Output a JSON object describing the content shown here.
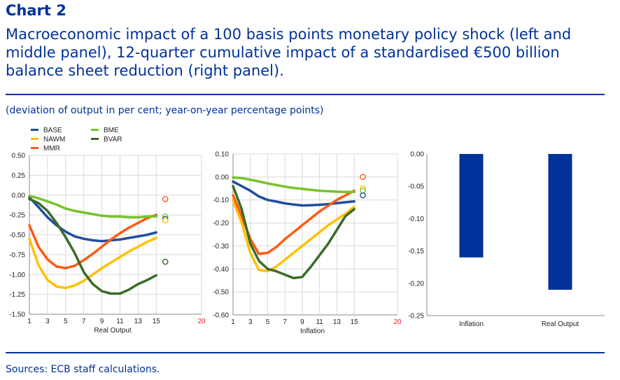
{
  "header": {
    "chart_label": "Chart 2",
    "title": "Macroeconomic impact of a 100 basis points monetary policy shock (left and middle panel), 12-quarter cumulative impact of a standardised €500 billion balance sheet reduction (right panel).",
    "unit_note": "(deviation of output in per cent; year-on-year percentage points)",
    "source": "Sources: ECB staff calculations."
  },
  "colors": {
    "BASE": "#1f4e9c",
    "NAWM": "#ffc000",
    "MMR": "#ff5a12",
    "BME": "#76c32a",
    "BVAR": "#3b6b2a",
    "bar": "#003299",
    "red_tick": "#e8192c"
  },
  "chart_data": [
    {
      "type": "line",
      "xlabel": "Real Output",
      "xlim": [
        1,
        20
      ],
      "xticks": [
        "1",
        "3",
        "5",
        "7",
        "9",
        "11",
        "13",
        "15",
        "20"
      ],
      "ylim": [
        -1.5,
        0.5
      ],
      "yticks": [
        "0.50",
        "0.25",
        "0.00",
        "-0.25",
        "-0.50",
        "-0.75",
        "-1.00",
        "-1.25",
        "-1.50"
      ],
      "grid": true,
      "legend": [
        "BASE",
        "NAWM",
        "MMR",
        "BME",
        "BVAR"
      ],
      "legend_position": "top-left",
      "x": [
        1,
        2,
        3,
        4,
        5,
        6,
        7,
        8,
        9,
        10,
        11,
        12,
        13,
        14,
        15
      ],
      "series": [
        {
          "name": "BASE",
          "values": [
            -0.03,
            -0.15,
            -0.28,
            -0.38,
            -0.46,
            -0.52,
            -0.55,
            -0.57,
            -0.58,
            -0.57,
            -0.56,
            -0.54,
            -0.52,
            -0.5,
            -0.47
          ]
        },
        {
          "name": "NAWM",
          "values": [
            -0.55,
            -0.88,
            -1.07,
            -1.15,
            -1.17,
            -1.14,
            -1.08,
            -1.0,
            -0.92,
            -0.85,
            -0.78,
            -0.71,
            -0.65,
            -0.59,
            -0.54
          ]
        },
        {
          "name": "MMR",
          "values": [
            -0.38,
            -0.65,
            -0.81,
            -0.9,
            -0.92,
            -0.89,
            -0.82,
            -0.74,
            -0.65,
            -0.56,
            -0.48,
            -0.41,
            -0.35,
            -0.29,
            -0.25
          ]
        },
        {
          "name": "BME",
          "values": [
            -0.01,
            -0.04,
            -0.08,
            -0.12,
            -0.17,
            -0.2,
            -0.22,
            -0.24,
            -0.26,
            -0.27,
            -0.27,
            -0.28,
            -0.28,
            -0.27,
            -0.27
          ]
        },
        {
          "name": "BVAR",
          "values": [
            -0.05,
            -0.1,
            -0.2,
            -0.35,
            -0.53,
            -0.73,
            -0.97,
            -1.12,
            -1.21,
            -1.24,
            -1.24,
            -1.19,
            -1.12,
            -1.07,
            -1.01
          ]
        }
      ],
      "endpoints_x": 16,
      "endpoints": [
        {
          "name": "MMR",
          "value": -0.05
        },
        {
          "name": "BME",
          "value": -0.27
        },
        {
          "name": "BASE",
          "value": -0.3
        },
        {
          "name": "NAWM",
          "value": -0.32
        },
        {
          "name": "BVAR",
          "value": -0.84
        }
      ]
    },
    {
      "type": "line",
      "xlabel": "Inflation",
      "xlim": [
        1,
        20
      ],
      "xticks": [
        "1",
        "3",
        "5",
        "7",
        "9",
        "11",
        "13",
        "15",
        "20"
      ],
      "ylim": [
        -0.6,
        0.1
      ],
      "yticks": [
        "0.10",
        "0.00",
        "-0.10",
        "-0.20",
        "-0.30",
        "-0.40",
        "-0.50",
        "-0.60"
      ],
      "grid": true,
      "x": [
        1,
        2,
        3,
        4,
        5,
        6,
        7,
        8,
        9,
        10,
        11,
        12,
        13,
        14,
        15
      ],
      "series": [
        {
          "name": "BASE",
          "values": [
            -0.02,
            -0.04,
            -0.06,
            -0.085,
            -0.1,
            -0.107,
            -0.115,
            -0.12,
            -0.124,
            -0.123,
            -0.121,
            -0.118,
            -0.114,
            -0.11,
            -0.106
          ]
        },
        {
          "name": "NAWM",
          "values": [
            -0.1,
            -0.2,
            -0.33,
            -0.405,
            -0.41,
            -0.39,
            -0.36,
            -0.33,
            -0.3,
            -0.27,
            -0.24,
            -0.21,
            -0.185,
            -0.16,
            -0.13
          ]
        },
        {
          "name": "MMR",
          "values": [
            -0.08,
            -0.17,
            -0.27,
            -0.335,
            -0.33,
            -0.305,
            -0.27,
            -0.24,
            -0.21,
            -0.18,
            -0.15,
            -0.125,
            -0.1,
            -0.08,
            -0.06
          ]
        },
        {
          "name": "BME",
          "values": [
            -0.002,
            -0.005,
            -0.012,
            -0.02,
            -0.028,
            -0.035,
            -0.042,
            -0.048,
            -0.052,
            -0.056,
            -0.06,
            -0.062,
            -0.064,
            -0.065,
            -0.065
          ]
        },
        {
          "name": "BVAR",
          "values": [
            -0.04,
            -0.14,
            -0.29,
            -0.365,
            -0.4,
            -0.41,
            -0.425,
            -0.44,
            -0.435,
            -0.39,
            -0.34,
            -0.29,
            -0.23,
            -0.17,
            -0.14
          ]
        }
      ],
      "endpoints_x": 16,
      "endpoints": [
        {
          "name": "MMR",
          "value": 0.0
        },
        {
          "name": "NAWM",
          "value": -0.05
        },
        {
          "name": "BME",
          "value": -0.06
        },
        {
          "name": "BASE",
          "value": -0.08
        }
      ]
    },
    {
      "type": "bar",
      "categories": [
        "Inflation",
        "Real Output"
      ],
      "values": [
        -0.16,
        -0.21
      ],
      "ylim": [
        -0.25,
        0.0
      ],
      "yticks": [
        "0.00",
        "-0.05",
        "-0.10",
        "-0.15",
        "-0.20",
        "-0.25"
      ],
      "grid": false
    }
  ]
}
